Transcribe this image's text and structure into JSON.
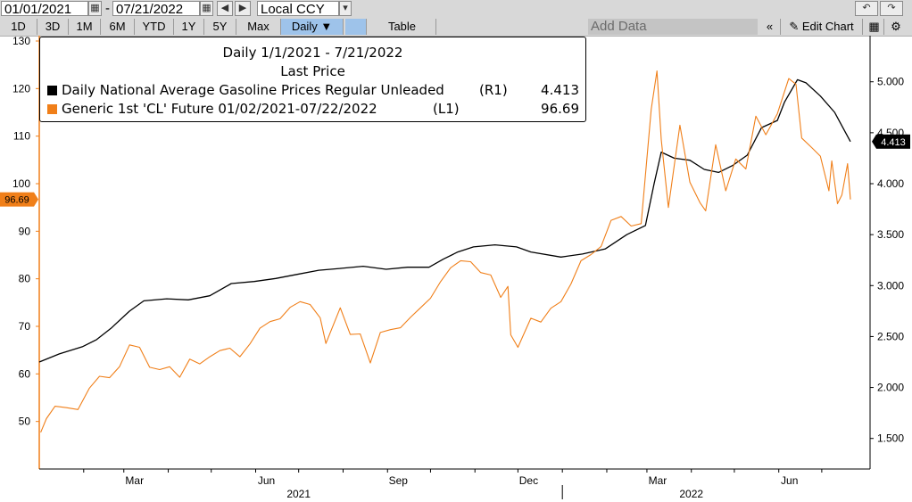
{
  "toolbar": {
    "start_date": "01/01/2021",
    "date_separator": "-",
    "end_date": "07/21/2022",
    "currency": "Local CCY",
    "periods": [
      "1D",
      "3D",
      "1M",
      "6M",
      "YTD",
      "1Y",
      "5Y",
      "Max"
    ],
    "frequency": "Daily ▼",
    "table_label": "Table",
    "add_data_placeholder": "Add Data",
    "edit_chart_label": "Edit Chart",
    "icons": [
      "calendar-icon",
      "arrow-left-icon",
      "arrow-right-icon",
      "dropdown-icon",
      "undo-icon",
      "redo-icon",
      "pencil-icon",
      "settings-icon"
    ]
  },
  "legend": {
    "title": "Daily 1/1/2021 - 7/21/2022",
    "subtitle": "Last Price",
    "items": [
      {
        "label": "Daily National Average Gasoline Prices Regular Unleaded",
        "axis": "(R1)",
        "value": "4.413",
        "color": "#000000"
      },
      {
        "label": "Generic 1st 'CL' Future 01/02/2021-07/22/2022",
        "axis": "(L1)",
        "value": "96.69",
        "color": "#f07f19"
      }
    ]
  },
  "chart_data": {
    "type": "line",
    "x_range": [
      "2021-01-01",
      "2022-07-21"
    ],
    "left_axis": {
      "ylim": [
        40,
        130
      ],
      "ticks": [
        "130",
        "120",
        "110",
        "100",
        "90",
        "80",
        "70",
        "60",
        "50"
      ],
      "tag": "96.69",
      "tag_color": "#f07f19"
    },
    "right_axis": {
      "ylim": [
        1.2,
        5.4
      ],
      "ticks": [
        "5.000",
        "4.500",
        "4.000",
        "3.500",
        "3.000",
        "2.500",
        "2.000",
        "1.500"
      ],
      "tag": "4.413",
      "tag_color": "#000000"
    },
    "x_month_labels": [
      {
        "label": "Mar",
        "date": "2021-03-01"
      },
      {
        "label": "Jun",
        "date": "2021-06-01"
      },
      {
        "label": "Sep",
        "date": "2021-09-01"
      },
      {
        "label": "Dec",
        "date": "2021-12-01"
      },
      {
        "label": "Mar",
        "date": "2022-03-01"
      },
      {
        "label": "Jun",
        "date": "2022-06-01"
      }
    ],
    "x_year_labels": [
      {
        "label": "2021",
        "date": "2021-07-01"
      },
      {
        "label": "2022",
        "date": "2022-04-01"
      }
    ],
    "series": [
      {
        "name": "Daily National Average Gasoline Prices Regular Unleaded",
        "axis": "right",
        "color": "#000000",
        "points": [
          [
            "2021-01-01",
            2.25
          ],
          [
            "2021-01-15",
            2.33
          ],
          [
            "2021-01-31",
            2.4
          ],
          [
            "2021-02-10",
            2.47
          ],
          [
            "2021-02-20",
            2.58
          ],
          [
            "2021-03-05",
            2.75
          ],
          [
            "2021-03-15",
            2.85
          ],
          [
            "2021-03-31",
            2.87
          ],
          [
            "2021-04-15",
            2.86
          ],
          [
            "2021-04-30",
            2.9
          ],
          [
            "2021-05-15",
            3.02
          ],
          [
            "2021-05-31",
            3.04
          ],
          [
            "2021-06-15",
            3.07
          ],
          [
            "2021-06-30",
            3.11
          ],
          [
            "2021-07-15",
            3.15
          ],
          [
            "2021-07-31",
            3.17
          ],
          [
            "2021-08-15",
            3.19
          ],
          [
            "2021-08-31",
            3.16
          ],
          [
            "2021-09-15",
            3.18
          ],
          [
            "2021-09-30",
            3.18
          ],
          [
            "2021-10-10",
            3.26
          ],
          [
            "2021-10-20",
            3.33
          ],
          [
            "2021-10-31",
            3.38
          ],
          [
            "2021-11-15",
            3.4
          ],
          [
            "2021-11-30",
            3.38
          ],
          [
            "2021-12-10",
            3.33
          ],
          [
            "2021-12-31",
            3.28
          ],
          [
            "2022-01-15",
            3.31
          ],
          [
            "2022-01-31",
            3.36
          ],
          [
            "2022-02-15",
            3.5
          ],
          [
            "2022-02-28",
            3.59
          ],
          [
            "2022-03-06",
            4.0
          ],
          [
            "2022-03-11",
            4.31
          ],
          [
            "2022-03-20",
            4.25
          ],
          [
            "2022-03-31",
            4.23
          ],
          [
            "2022-04-10",
            4.14
          ],
          [
            "2022-04-20",
            4.11
          ],
          [
            "2022-04-30",
            4.18
          ],
          [
            "2022-05-10",
            4.28
          ],
          [
            "2022-05-20",
            4.55
          ],
          [
            "2022-05-31",
            4.62
          ],
          [
            "2022-06-05",
            4.8
          ],
          [
            "2022-06-14",
            5.02
          ],
          [
            "2022-06-20",
            4.99
          ],
          [
            "2022-06-30",
            4.86
          ],
          [
            "2022-07-10",
            4.7
          ],
          [
            "2022-07-21",
            4.413
          ]
        ]
      },
      {
        "name": "Generic 1st 'CL' Future 01/02/2021-07/22/2022",
        "axis": "left",
        "color": "#f07f19",
        "points": [
          [
            "2021-01-02",
            47.7
          ],
          [
            "2021-01-06",
            50.6
          ],
          [
            "2021-01-12",
            53.2
          ],
          [
            "2021-01-20",
            52.9
          ],
          [
            "2021-01-28",
            52.5
          ],
          [
            "2021-02-05",
            57.0
          ],
          [
            "2021-02-12",
            59.5
          ],
          [
            "2021-02-19",
            59.2
          ],
          [
            "2021-02-26",
            61.5
          ],
          [
            "2021-03-05",
            66.1
          ],
          [
            "2021-03-12",
            65.6
          ],
          [
            "2021-03-19",
            61.4
          ],
          [
            "2021-03-26",
            60.9
          ],
          [
            "2021-04-02",
            61.5
          ],
          [
            "2021-04-09",
            59.3
          ],
          [
            "2021-04-16",
            63.1
          ],
          [
            "2021-04-23",
            62.1
          ],
          [
            "2021-04-30",
            63.6
          ],
          [
            "2021-05-07",
            64.9
          ],
          [
            "2021-05-14",
            65.4
          ],
          [
            "2021-05-21",
            63.6
          ],
          [
            "2021-05-28",
            66.3
          ],
          [
            "2021-06-04",
            69.6
          ],
          [
            "2021-06-11",
            71.0
          ],
          [
            "2021-06-18",
            71.6
          ],
          [
            "2021-06-25",
            74.0
          ],
          [
            "2021-07-02",
            75.2
          ],
          [
            "2021-07-09",
            74.6
          ],
          [
            "2021-07-16",
            71.8
          ],
          [
            "2021-07-20",
            66.4
          ],
          [
            "2021-07-30",
            73.9
          ],
          [
            "2021-08-06",
            68.3
          ],
          [
            "2021-08-13",
            68.4
          ],
          [
            "2021-08-20",
            62.3
          ],
          [
            "2021-08-27",
            68.7
          ],
          [
            "2021-09-03",
            69.3
          ],
          [
            "2021-09-10",
            69.7
          ],
          [
            "2021-09-17",
            71.9
          ],
          [
            "2021-09-24",
            73.9
          ],
          [
            "2021-10-01",
            75.9
          ],
          [
            "2021-10-08",
            79.4
          ],
          [
            "2021-10-15",
            82.3
          ],
          [
            "2021-10-22",
            83.8
          ],
          [
            "2021-10-29",
            83.6
          ],
          [
            "2021-11-05",
            81.3
          ],
          [
            "2021-11-12",
            80.8
          ],
          [
            "2021-11-19",
            76.1
          ],
          [
            "2021-11-24",
            78.4
          ],
          [
            "2021-11-26",
            68.2
          ],
          [
            "2021-12-01",
            65.6
          ],
          [
            "2021-12-10",
            71.7
          ],
          [
            "2021-12-17",
            70.9
          ],
          [
            "2021-12-24",
            73.8
          ],
          [
            "2021-12-31",
            75.2
          ],
          [
            "2022-01-07",
            78.9
          ],
          [
            "2022-01-14",
            83.8
          ],
          [
            "2022-01-21",
            85.1
          ],
          [
            "2022-01-28",
            86.8
          ],
          [
            "2022-02-04",
            92.3
          ],
          [
            "2022-02-11",
            93.1
          ],
          [
            "2022-02-18",
            91.1
          ],
          [
            "2022-02-25",
            91.6
          ],
          [
            "2022-03-04",
            115.7
          ],
          [
            "2022-03-08",
            123.7
          ],
          [
            "2022-03-11",
            109.3
          ],
          [
            "2022-03-16",
            95.0
          ],
          [
            "2022-03-24",
            112.3
          ],
          [
            "2022-03-31",
            100.3
          ],
          [
            "2022-04-07",
            96.0
          ],
          [
            "2022-04-11",
            94.3
          ],
          [
            "2022-04-18",
            108.2
          ],
          [
            "2022-04-25",
            98.5
          ],
          [
            "2022-05-02",
            105.2
          ],
          [
            "2022-05-09",
            103.1
          ],
          [
            "2022-05-16",
            114.2
          ],
          [
            "2022-05-23",
            110.3
          ],
          [
            "2022-05-31",
            114.7
          ],
          [
            "2022-06-08",
            122.1
          ],
          [
            "2022-06-13",
            120.9
          ],
          [
            "2022-06-17",
            109.6
          ],
          [
            "2022-06-24",
            107.6
          ],
          [
            "2022-06-30",
            105.8
          ],
          [
            "2022-07-06",
            98.5
          ],
          [
            "2022-07-08",
            104.8
          ],
          [
            "2022-07-12",
            95.8
          ],
          [
            "2022-07-15",
            97.6
          ],
          [
            "2022-07-19",
            104.2
          ],
          [
            "2022-07-21",
            96.69
          ]
        ]
      }
    ],
    "grid": false,
    "legend_position": "top-left"
  }
}
